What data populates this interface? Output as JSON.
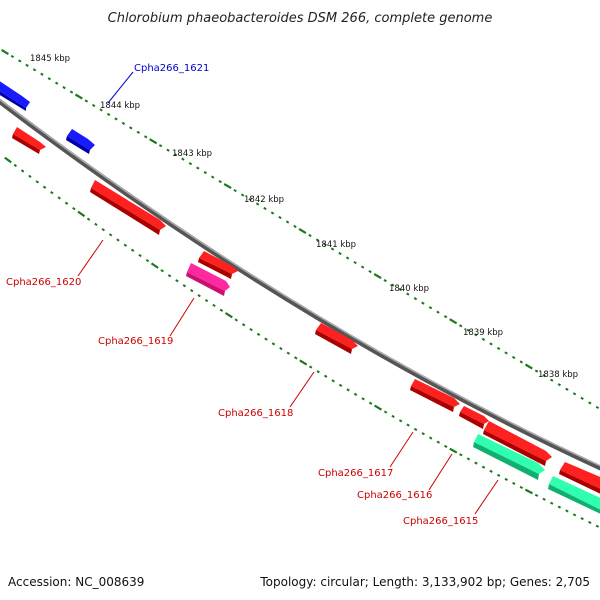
{
  "title": "Chlorobium phaeobacteroides DSM 266, complete genome",
  "footer": {
    "accession": "Accession: NC_008639",
    "summary": "Topology: circular; Length: 3,133,902 bp; Genes: 2,705"
  },
  "kbp_labels": [
    "1845 kbp",
    "1844 kbp",
    "1843 kbp",
    "1842 kbp",
    "1841 kbp",
    "1840 kbp",
    "1839 kbp",
    "1838 kbp"
  ],
  "genes": [
    {
      "id": "Cpha266_1621",
      "label": "Cpha266_1621",
      "color": "#0000cc"
    },
    {
      "id": "Cpha266_1620",
      "label": "Cpha266_1620",
      "color": "#cc0000"
    },
    {
      "id": "Cpha266_1619",
      "label": "Cpha266_1619",
      "color": "#cc0000"
    },
    {
      "id": "Cpha266_1618",
      "label": "Cpha266_1618",
      "color": "#cc0000"
    },
    {
      "id": "Cpha266_1617",
      "label": "Cpha266_1617",
      "color": "#cc0000"
    },
    {
      "id": "Cpha266_1616",
      "label": "Cpha266_1616",
      "color": "#cc0000"
    },
    {
      "id": "Cpha266_1615",
      "label": "Cpha266_1615",
      "color": "#cc0000"
    }
  ],
  "colors": {
    "forward_gene": "#1a1aff",
    "reverse_gene": "#ff1a1a",
    "pink_gene": "#ff2aa0",
    "teal_gene": "#20f0a0",
    "backbone": "#888888",
    "ticks": "#1a7a1a"
  }
}
